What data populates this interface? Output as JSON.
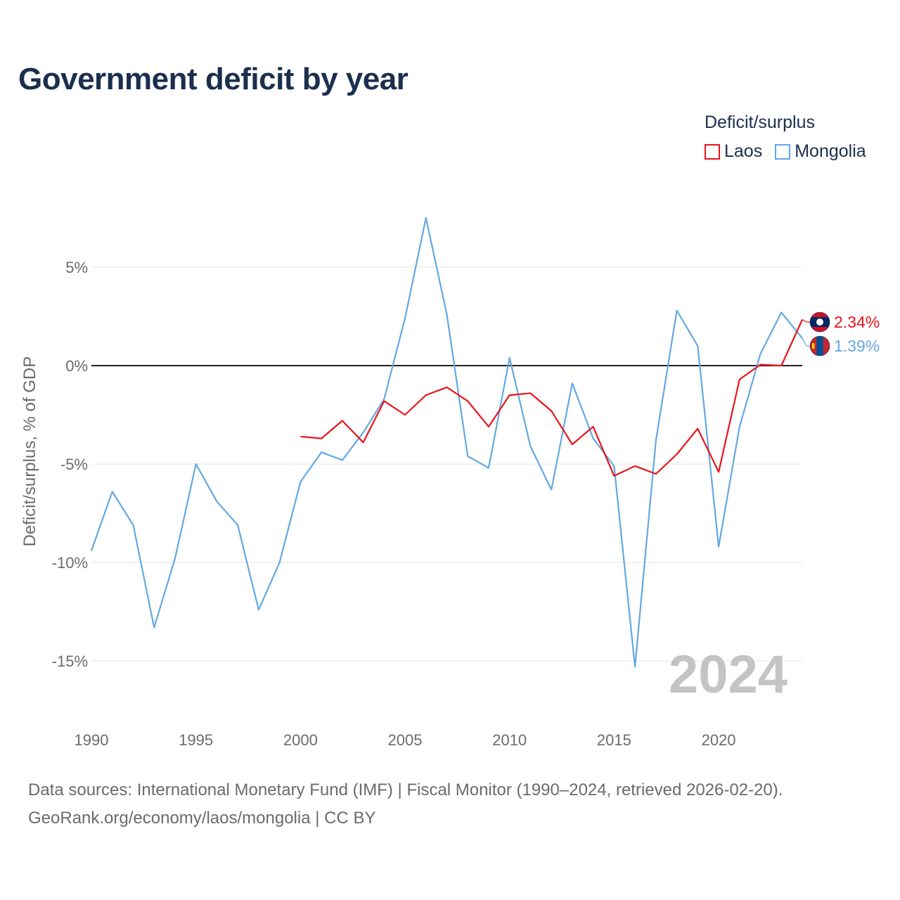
{
  "chart_data": {
    "type": "line",
    "title": "Government deficit by year",
    "ylabel": "Deficit/surplus, % of GDP",
    "xlabel": "",
    "xlim": [
      1990,
      2024
    ],
    "ylim": [
      -17.5,
      10
    ],
    "x_ticks": [
      1990,
      1995,
      2000,
      2005,
      2010,
      2015,
      2020
    ],
    "y_ticks": [
      5,
      0,
      -5,
      -10,
      -15
    ],
    "y_tick_labels": [
      "5%",
      "0%",
      "-5%",
      "-10%",
      "-15%"
    ],
    "grid": true,
    "legend_title": "Deficit/surplus",
    "legend_position": "top-right",
    "year_watermark": "2024",
    "series": [
      {
        "name": "Laos",
        "color": "#e8141c",
        "x": [
          2000,
          2001,
          2002,
          2003,
          2004,
          2005,
          2006,
          2007,
          2008,
          2009,
          2010,
          2011,
          2012,
          2013,
          2014,
          2015,
          2016,
          2017,
          2018,
          2019,
          2020,
          2021,
          2022,
          2023,
          2024
        ],
        "values": [
          -3.6,
          -3.7,
          -2.8,
          -3.9,
          -1.8,
          -2.5,
          -1.5,
          -1.1,
          -1.8,
          -3.1,
          -1.5,
          -1.4,
          -2.3,
          -4.0,
          -3.1,
          -5.6,
          -5.1,
          -5.5,
          -4.5,
          -3.2,
          -5.4,
          -0.7,
          0.05,
          0.0,
          2.34
        ],
        "end_label": "2.34%",
        "flag_icon": "laos-flag-icon"
      },
      {
        "name": "Mongolia",
        "color": "#64a8e2",
        "x": [
          1990,
          1991,
          1992,
          1993,
          1994,
          1995,
          1996,
          1997,
          1998,
          1999,
          2000,
          2001,
          2002,
          2003,
          2004,
          2005,
          2006,
          2007,
          2008,
          2009,
          2010,
          2011,
          2012,
          2013,
          2014,
          2015,
          2016,
          2017,
          2018,
          2019,
          2020,
          2021,
          2022,
          2023,
          2024
        ],
        "values": [
          -9.4,
          -6.4,
          -8.1,
          -13.3,
          -9.8,
          -5.0,
          -6.9,
          -8.1,
          -12.4,
          -10.0,
          -5.9,
          -4.4,
          -4.8,
          -3.4,
          -1.7,
          2.4,
          7.5,
          2.6,
          -4.6,
          -5.2,
          0.4,
          -4.1,
          -6.3,
          -0.9,
          -3.7,
          -5.1,
          -15.3,
          -3.8,
          2.8,
          1.0,
          -9.2,
          -3.1,
          0.6,
          2.7,
          1.39
        ],
        "end_label": "1.39%",
        "flag_icon": "mongolia-flag-icon"
      }
    ]
  },
  "source_note": {
    "line1": "Data sources: International Monetary Fund (IMF) | Fiscal Monitor (1990–2024, retrieved 2026-02-20).",
    "line2": "GeoRank.org/economy/laos/mongolia | CC BY"
  }
}
